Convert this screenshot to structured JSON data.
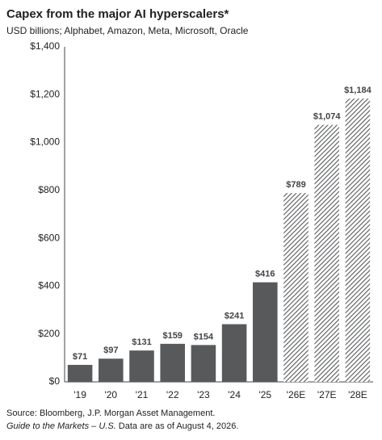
{
  "chart_data": {
    "type": "bar",
    "title": "Capex from the major AI hyperscalers*",
    "subtitle": "USD billions; Alphabet, Amazon, Meta, Microsoft, Oracle",
    "categories": [
      "'19",
      "'20",
      "'21",
      "'22",
      "'23",
      "'24",
      "'25",
      "'26E",
      "'27E",
      "'28E"
    ],
    "values": [
      71,
      97,
      131,
      159,
      154,
      241,
      416,
      789,
      1074,
      1184
    ],
    "value_labels": [
      "$71",
      "$97",
      "$131",
      "$159",
      "$154",
      "$241",
      "$416",
      "$789",
      "$1,074",
      "$1,184"
    ],
    "hatched": [
      false,
      false,
      false,
      false,
      false,
      false,
      false,
      true,
      true,
      true
    ],
    "color": "#58595b",
    "ylim": [
      0,
      1400
    ],
    "yticks": [
      {
        "value": 0,
        "label": "$0"
      },
      {
        "value": 200,
        "label": "$200"
      },
      {
        "value": 400,
        "label": "$400"
      },
      {
        "value": 600,
        "label": "$600"
      },
      {
        "value": 800,
        "label": "$800"
      },
      {
        "value": 1000,
        "label": "$1,000"
      },
      {
        "value": 1200,
        "label": "$1,200"
      },
      {
        "value": 1400,
        "label": "$1,400"
      }
    ],
    "grid": false,
    "source": "Source: Bloomberg, J.P. Morgan Asset Management.",
    "note_italic": "Guide to the Markets – U.S.",
    "note_rest": " Data are as of August 4, 2026."
  }
}
